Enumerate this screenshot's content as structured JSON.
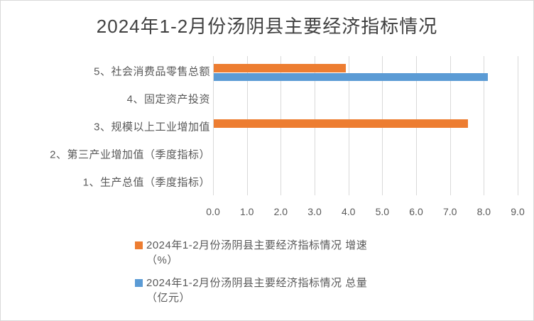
{
  "title": "2024年1-2月份汤阴县主要经济指标情况",
  "colors": {
    "growth_series": "#ED7D31",
    "total_series": "#5B9BD5",
    "gridline": "#D9D9D9",
    "axis_text": "#595959",
    "title_text": "#404040",
    "border": "#D9D9D9",
    "background": "#FFFFFF"
  },
  "chart_data": {
    "type": "bar",
    "orientation": "horizontal",
    "title": "2024年1-2月份汤阴县主要经济指标情况",
    "categories_order": "top-to-bottom",
    "categories": [
      "5、社会消费品零售总额",
      "4、固定资产投资",
      "3、规模以上工业增加值",
      "2、第三产业增加值（季度指标）",
      "1、生产总值（季度指标）"
    ],
    "series": [
      {
        "name": "2024年1-2月份汤阴县主要经济指标情况 增速（%）",
        "color": "#ED7D31",
        "values": [
          3.9,
          null,
          7.5,
          null,
          null
        ]
      },
      {
        "name": "2024年1-2月份汤阴县主要经济指标情况 总量（亿元）",
        "color": "#5B9BD5",
        "values": [
          8.1,
          null,
          null,
          null,
          null
        ]
      }
    ],
    "xlim": [
      0,
      9
    ],
    "x_ticks": [
      "0.0",
      "1.0",
      "2.0",
      "3.0",
      "4.0",
      "5.0",
      "6.0",
      "7.0",
      "8.0",
      "9.0"
    ],
    "grid": true,
    "axis_lines": false,
    "legend_position": "bottom-left"
  },
  "legend": {
    "items": [
      {
        "line1": "2024年1-2月份汤阴县主要经济指标情况 增速",
        "line2": "（%）",
        "color": "#ED7D31"
      },
      {
        "line1": "2024年1-2月份汤阴县主要经济指标情况 总量",
        "line2": "（亿元）",
        "color": "#5B9BD5"
      }
    ]
  }
}
